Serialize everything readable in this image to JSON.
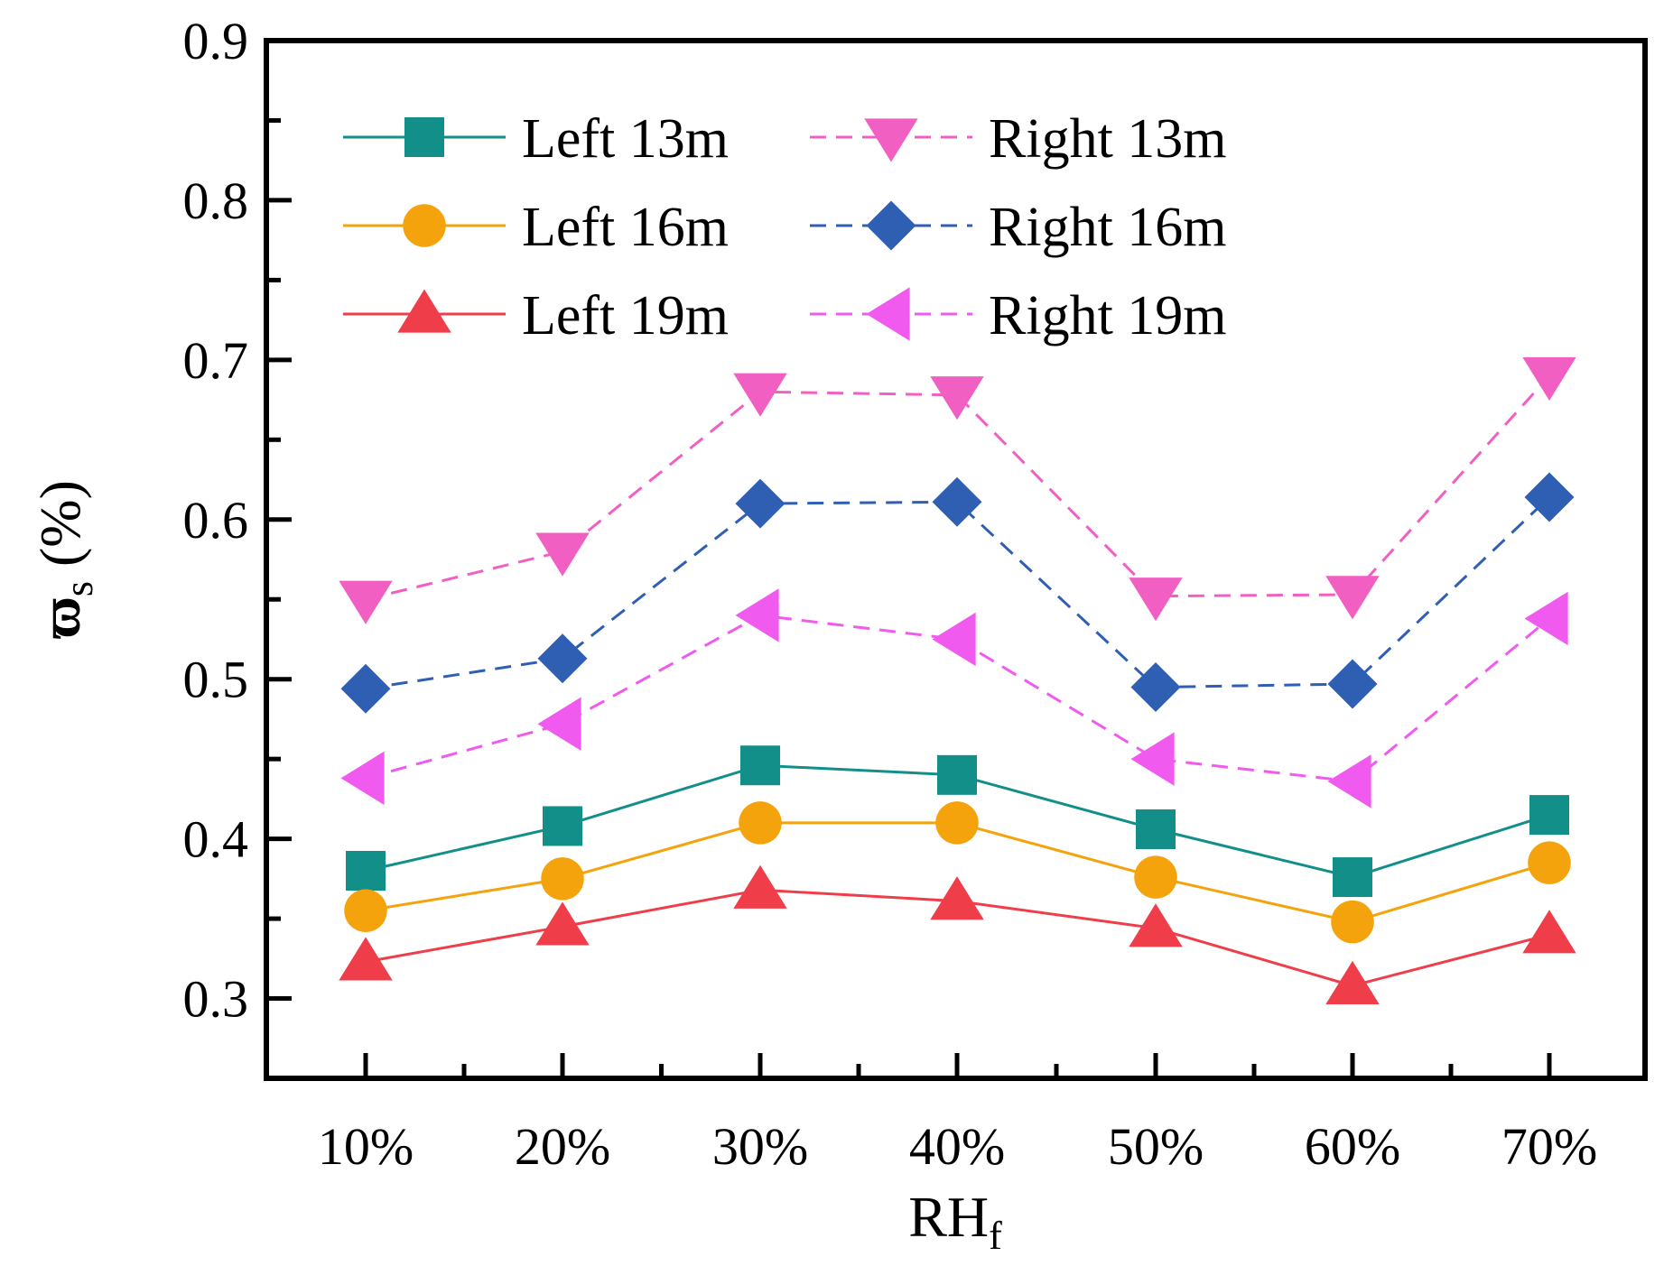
{
  "chart_data": {
    "type": "line",
    "xlabel": "RH",
    "xlabel_sub": "f",
    "ylabel_symbol": "ϖ",
    "ylabel_sub": "s",
    "ylabel_unit": "(%)",
    "categories": [
      "10%",
      "20%",
      "30%",
      "40%",
      "50%",
      "60%",
      "70%"
    ],
    "ylim": [
      0.25,
      0.9
    ],
    "yticks": [
      "0.3",
      "0.4",
      "0.5",
      "0.6",
      "0.7",
      "0.8",
      "0.9"
    ],
    "ytick_values": [
      0.3,
      0.4,
      0.5,
      0.6,
      0.7,
      0.8,
      0.9
    ],
    "grid": false,
    "legend_position": "top-left",
    "series": [
      {
        "name": "Left 13m",
        "color": "#138F8A",
        "marker": "square",
        "dash": "solid",
        "values": [
          0.38,
          0.408,
          0.446,
          0.44,
          0.406,
          0.376,
          0.415
        ]
      },
      {
        "name": "Left 16m",
        "color": "#F5A30C",
        "marker": "circle",
        "dash": "solid",
        "values": [
          0.355,
          0.375,
          0.41,
          0.41,
          0.376,
          0.348,
          0.385
        ]
      },
      {
        "name": "Left 19m",
        "color": "#EF3E4A",
        "marker": "triangle-up",
        "dash": "solid",
        "values": [
          0.323,
          0.345,
          0.368,
          0.361,
          0.344,
          0.308,
          0.34
        ]
      },
      {
        "name": "Right 13m",
        "color": "#F25FC2",
        "marker": "triangle-down",
        "dash": "dashed",
        "values": [
          0.55,
          0.58,
          0.68,
          0.678,
          0.552,
          0.553,
          0.69
        ]
      },
      {
        "name": "Right 16m",
        "color": "#2F5FB3",
        "marker": "diamond",
        "dash": "dashed",
        "values": [
          0.494,
          0.513,
          0.61,
          0.611,
          0.495,
          0.497,
          0.614
        ]
      },
      {
        "name": "Right 19m",
        "color": "#F05AEE",
        "marker": "triangle-left",
        "dash": "dashed",
        "values": [
          0.438,
          0.472,
          0.54,
          0.525,
          0.45,
          0.436,
          0.538
        ]
      }
    ]
  }
}
